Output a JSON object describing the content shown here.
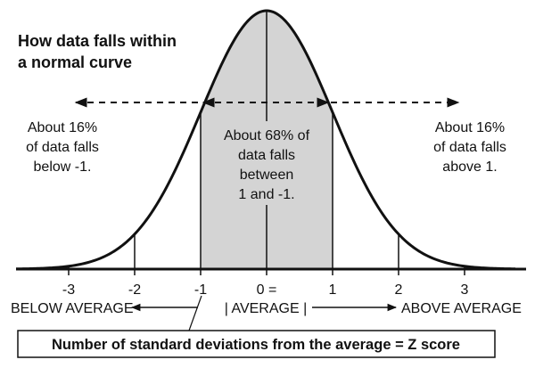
{
  "title": {
    "line1": "How data falls within",
    "line2": "a normal curve"
  },
  "annotations": {
    "left": [
      "About 16%",
      "of data falls",
      "below -1."
    ],
    "center": [
      "About 68% of",
      "data falls",
      "between",
      "1 and -1."
    ],
    "right": [
      "About 16%",
      "of data falls",
      "above 1."
    ]
  },
  "ticks": [
    {
      "value": -3,
      "label": "-3"
    },
    {
      "value": -2,
      "label": "-2"
    },
    {
      "value": -1,
      "label": "-1"
    },
    {
      "value": 0,
      "label": "0 ="
    },
    {
      "value": 1,
      "label": "1"
    },
    {
      "value": 2,
      "label": "2"
    },
    {
      "value": 3,
      "label": "3"
    }
  ],
  "direction_labels": {
    "below": "BELOW AVERAGE",
    "average": "| AVERAGE |",
    "above": "ABOVE AVERAGE"
  },
  "footer": "Number of standard deviations from the average = Z score",
  "colors": {
    "ink": "#111111",
    "shade": "#d4d4d4",
    "background": "#ffffff"
  }
}
